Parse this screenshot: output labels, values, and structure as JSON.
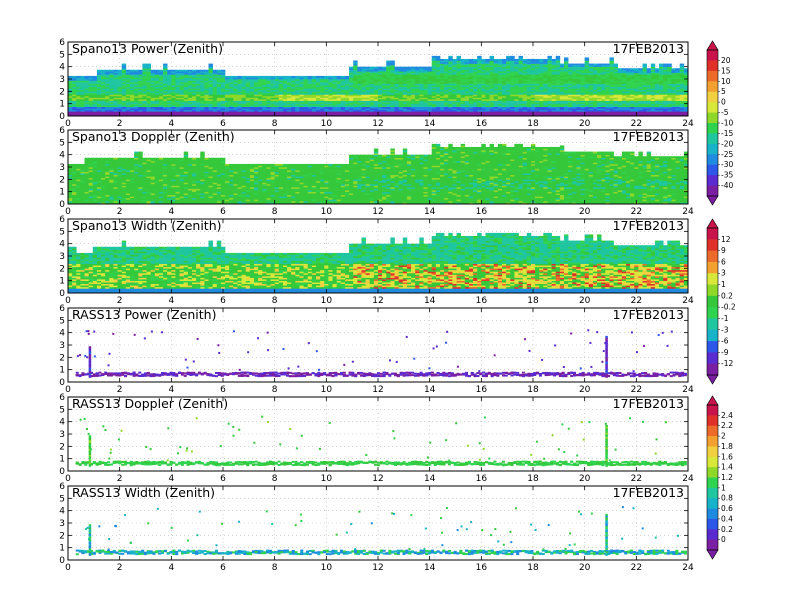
{
  "date_label": "17FEB2013",
  "x_ticks": [
    "0",
    "2",
    "4",
    "6",
    "8",
    "10",
    "12",
    "14",
    "16",
    "18",
    "20",
    "22",
    "24"
  ],
  "y_ticks": [
    "0",
    "1",
    "2",
    "3",
    "4",
    "5",
    "6"
  ],
  "palettes": {
    "rainbow": [
      "#7b1fa2",
      "#5a2bd0",
      "#2c57e8",
      "#1f8be0",
      "#18b3c8",
      "#1fc6a0",
      "#2fd34f",
      "#34c83a",
      "#8fd82a",
      "#d8e83a",
      "#f0d040",
      "#f2a030",
      "#ec6a2a",
      "#e0302a",
      "#c8144a"
    ]
  },
  "colorbars": [
    {
      "labels": [
        "20",
        "15",
        "10",
        "5",
        "0",
        "-5",
        "-10",
        "-15",
        "-20",
        "-25",
        "-30",
        "-35",
        "-40"
      ]
    },
    {
      "labels": [
        "12",
        "9",
        "6",
        "3",
        "1",
        "0.2",
        "-0.2",
        "-1",
        "-3",
        "-6",
        "-9",
        "-12"
      ]
    },
    {
      "labels": [
        "2.4",
        "2.2",
        "2",
        "1.8",
        "1.6",
        "1.4",
        "1.2",
        "1",
        "0.8",
        "0.6",
        "0.4",
        "0.2",
        "0"
      ]
    }
  ],
  "chart_data": [
    {
      "type": "heatmap",
      "title": "Spano13 Power (Zenith)",
      "date": "17FEB2013",
      "xlim": [
        0,
        24
      ],
      "ylim": [
        0,
        6
      ],
      "kind": "spano_power"
    },
    {
      "type": "heatmap",
      "title": "Spano13 Doppler (Zenith)",
      "date": "17FEB2013",
      "xlim": [
        0,
        24
      ],
      "ylim": [
        0,
        6
      ],
      "kind": "spano_doppler"
    },
    {
      "type": "heatmap",
      "title": "Spano13 Width (Zenith)",
      "date": "17FEB2013",
      "xlim": [
        0,
        24
      ],
      "ylim": [
        0,
        6
      ],
      "kind": "spano_width"
    },
    {
      "type": "heatmap",
      "title": "RASS13 Power (Zenith)",
      "date": "17FEB2013",
      "xlim": [
        0,
        24
      ],
      "ylim": [
        0,
        6
      ],
      "kind": "rass_power"
    },
    {
      "type": "heatmap",
      "title": "RASS13 Doppler (Zenith)",
      "date": "17FEB2013",
      "xlim": [
        0,
        24
      ],
      "ylim": [
        0,
        6
      ],
      "kind": "rass_doppler"
    },
    {
      "type": "heatmap",
      "title": "RASS13 Width (Zenith)",
      "date": "17FEB2013",
      "xlim": [
        0,
        24
      ],
      "ylim": [
        0,
        6
      ],
      "kind": "rass_width"
    }
  ]
}
